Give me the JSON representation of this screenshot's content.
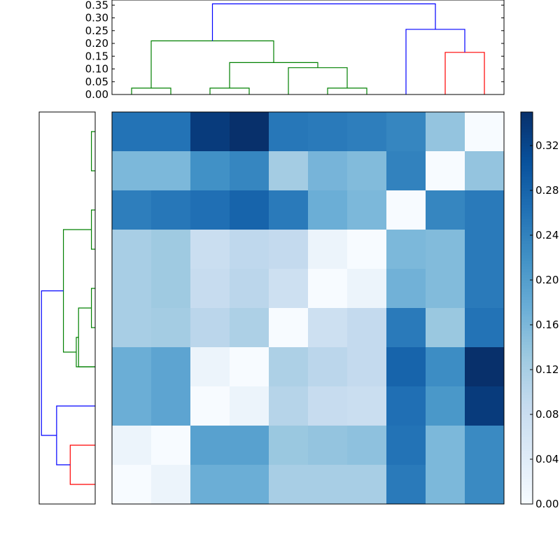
{
  "chart_data": {
    "type": "heatmap",
    "title": "",
    "colormap": "Blues",
    "matrix": [
      [
        0.26,
        0.26,
        0.335,
        0.35,
        0.255,
        0.25,
        0.245,
        0.235,
        0.14,
        0.0
      ],
      [
        0.16,
        0.16,
        0.22,
        0.235,
        0.125,
        0.165,
        0.155,
        0.24,
        0.0,
        0.14
      ],
      [
        0.245,
        0.255,
        0.265,
        0.28,
        0.25,
        0.175,
        0.16,
        0.0,
        0.235,
        0.25
      ],
      [
        0.12,
        0.13,
        0.08,
        0.095,
        0.09,
        0.02,
        0.0,
        0.16,
        0.155,
        0.25
      ],
      [
        0.12,
        0.13,
        0.085,
        0.1,
        0.075,
        0.0,
        0.02,
        0.17,
        0.155,
        0.25
      ],
      [
        0.12,
        0.125,
        0.1,
        0.115,
        0.0,
        0.075,
        0.09,
        0.25,
        0.135,
        0.26
      ],
      [
        0.175,
        0.19,
        0.02,
        0.0,
        0.115,
        0.1,
        0.09,
        0.28,
        0.225,
        0.35
      ],
      [
        0.175,
        0.19,
        0.0,
        0.02,
        0.105,
        0.085,
        0.08,
        0.265,
        0.21,
        0.335
      ],
      [
        0.02,
        0.0,
        0.195,
        0.195,
        0.135,
        0.14,
        0.145,
        0.26,
        0.16,
        0.23
      ],
      [
        0.0,
        0.02,
        0.175,
        0.175,
        0.12,
        0.12,
        0.12,
        0.25,
        0.16,
        0.23
      ]
    ],
    "vmin": 0.0,
    "vmax": 0.35,
    "colorbar": {
      "ticks": [
        0.0,
        0.04,
        0.08,
        0.12,
        0.16,
        0.2,
        0.24,
        0.28,
        0.32
      ],
      "tick_labels": [
        "0.00",
        "0.04",
        "0.08",
        "0.12",
        "0.16",
        "0.20",
        "0.24",
        "0.28",
        "0.32"
      ]
    },
    "top_dendrogram": {
      "ylim": [
        0,
        0.37
      ],
      "ticks": [
        0.0,
        0.05,
        0.1,
        0.15,
        0.2,
        0.25,
        0.3,
        0.35
      ],
      "tick_labels": [
        "0.00",
        "0.05",
        "0.10",
        "0.15",
        "0.20",
        "0.25",
        "0.30",
        "0.35"
      ],
      "leaf_count": 10,
      "links": [
        {
          "left": 0.5,
          "right": 1.5,
          "height": 0.025,
          "left_h": 0,
          "right_h": 0,
          "color": "#008000"
        },
        {
          "left": 2.5,
          "right": 3.5,
          "height": 0.025,
          "left_h": 0,
          "right_h": 0,
          "color": "#008000"
        },
        {
          "left": 5.5,
          "right": 6.5,
          "height": 0.025,
          "left_h": 0,
          "right_h": 0,
          "color": "#008000"
        },
        {
          "left": 4.5,
          "right": 6.0,
          "height": 0.105,
          "left_h": 0,
          "right_h": 0.025,
          "color": "#008000"
        },
        {
          "left": 3.0,
          "right": 5.25,
          "height": 0.125,
          "left_h": 0.025,
          "right_h": 0.105,
          "color": "#008000"
        },
        {
          "left": 1.0,
          "right": 4.125,
          "height": 0.21,
          "left_h": 0.025,
          "right_h": 0.125,
          "color": "#008000"
        },
        {
          "left": 8.5,
          "right": 9.5,
          "height": 0.165,
          "left_h": 0,
          "right_h": 0,
          "color": "#ff0000"
        },
        {
          "left": 7.5,
          "right": 9.0,
          "height": 0.255,
          "left_h": 0,
          "right_h": 0.165,
          "color": "#0000ff"
        },
        {
          "left": 2.5625,
          "right": 8.25,
          "height": 0.355,
          "left_h": 0.21,
          "right_h": 0.255,
          "color": "#0000ff"
        }
      ]
    },
    "left_dendrogram": {
      "xlim": [
        0.37,
        0
      ],
      "leaf_count": 10,
      "links": [
        {
          "left": 0.5,
          "right": 1.5,
          "height": 0.025,
          "left_h": 0,
          "right_h": 0,
          "color": "#008000"
        },
        {
          "left": 2.5,
          "right": 3.5,
          "height": 0.025,
          "left_h": 0,
          "right_h": 0,
          "color": "#008000"
        },
        {
          "left": 4.5,
          "right": 5.5,
          "height": 0.025,
          "left_h": 0,
          "right_h": 0,
          "color": "#008000"
        },
        {
          "left": 5.0,
          "right": 6.5,
          "height": 0.11,
          "left_h": 0.025,
          "right_h": 0,
          "color": "#008000"
        },
        {
          "left": 5.75,
          "right": 6.5,
          "height": 0.125,
          "left_h": 0.11,
          "right_h": 0,
          "color": "#008000"
        },
        {
          "left": 3.0,
          "right": 6.125,
          "height": 0.21,
          "left_h": 0.025,
          "right_h": 0.125,
          "color": "#008000"
        },
        {
          "left": 8.5,
          "right": 9.5,
          "height": 0.165,
          "left_h": 0,
          "right_h": 0,
          "color": "#ff0000"
        },
        {
          "left": 7.5,
          "right": 9.0,
          "height": 0.255,
          "left_h": 0,
          "right_h": 0.165,
          "color": "#0000ff"
        },
        {
          "left": 4.5625,
          "right": 8.25,
          "height": 0.355,
          "left_h": 0.21,
          "right_h": 0.255,
          "color": "#0000ff"
        }
      ]
    }
  }
}
